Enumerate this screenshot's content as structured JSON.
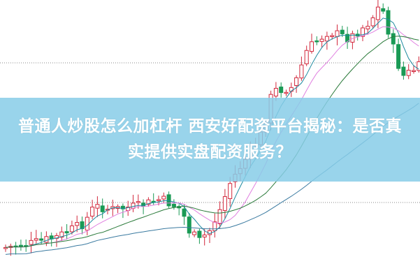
{
  "article": {
    "title": "普通人炒股怎么加杠杆 西安好配资平台揭秘：是否真实提供实盘配资服务？"
  },
  "colors": {
    "up": "#d2283c",
    "down": "#1a9a55",
    "banner": "#87cce8",
    "ma_short": "#1e8aa0",
    "ma_mid": "#e080e0",
    "ma_long": "#2a7a3a",
    "ma_slow": "#3a7aa0"
  }
}
